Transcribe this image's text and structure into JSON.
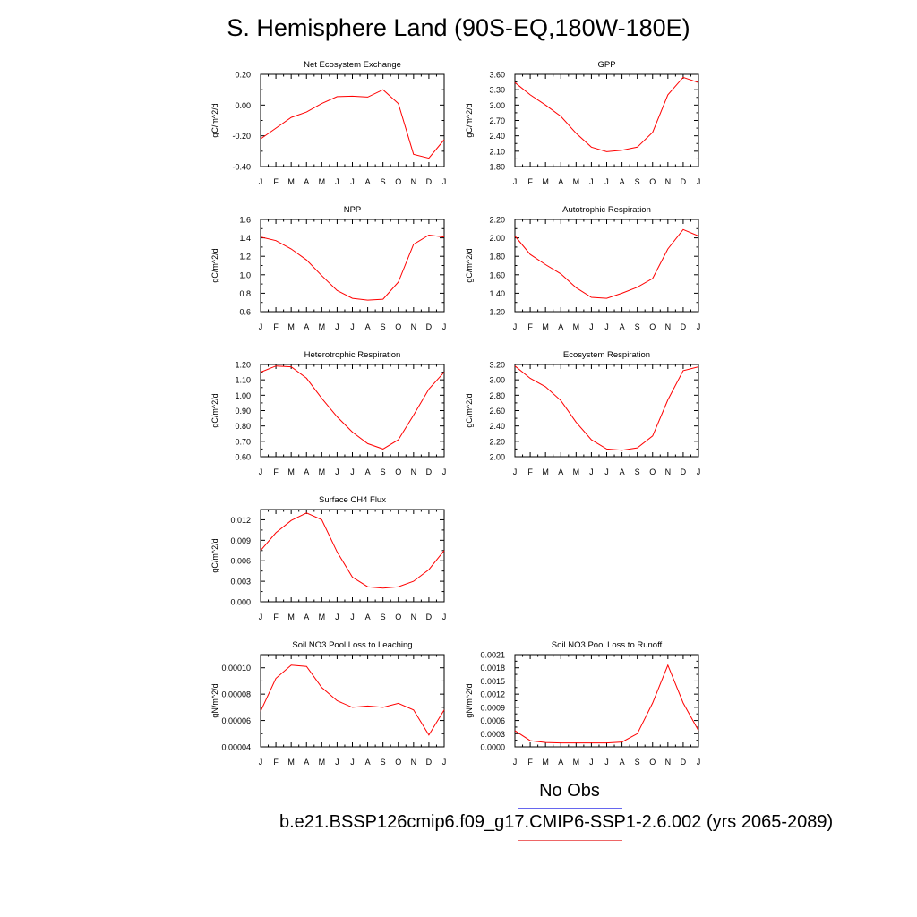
{
  "title": "S. Hemisphere Land (90S-EQ,180W-180E)",
  "legend": {
    "obs_label": "No Obs",
    "model_label": "b.e21.BSSP126cmip6.f09_g17.CMIP6-SSP1-2.6.002 (yrs 2065-2089)",
    "obs_color": "#6666ee",
    "model_color": "#ee6666"
  },
  "series_color": "#ff0000",
  "chart_data": [
    {
      "type": "line",
      "title": "Net Ecosystem Exchange",
      "ylabel": "gC/m^2/d",
      "categories": [
        "J",
        "F",
        "M",
        "A",
        "M",
        "J",
        "J",
        "A",
        "S",
        "O",
        "N",
        "D",
        "J"
      ],
      "ylim": [
        -0.4,
        0.2
      ],
      "yticks": [
        "-0.40",
        "-0.20",
        "0.00",
        "0.20"
      ],
      "values": [
        -0.22,
        -0.15,
        -0.08,
        -0.045,
        0.01,
        0.055,
        0.058,
        0.052,
        0.1,
        0.01,
        -0.32,
        -0.345,
        -0.225
      ]
    },
    {
      "type": "line",
      "title": "GPP",
      "ylabel": "gC/m^2/d",
      "categories": [
        "J",
        "F",
        "M",
        "A",
        "M",
        "J",
        "J",
        "A",
        "S",
        "O",
        "N",
        "D",
        "J"
      ],
      "ylim": [
        1.8,
        3.6
      ],
      "yticks": [
        "1.80",
        "2.10",
        "2.40",
        "2.70",
        "3.00",
        "3.30",
        "3.60"
      ],
      "values": [
        3.44,
        3.2,
        3.0,
        2.78,
        2.45,
        2.18,
        2.09,
        2.12,
        2.18,
        2.47,
        3.2,
        3.54,
        3.44
      ]
    },
    {
      "type": "line",
      "title": "NPP",
      "ylabel": "gC/m^2/d",
      "categories": [
        "J",
        "F",
        "M",
        "A",
        "M",
        "J",
        "J",
        "A",
        "S",
        "O",
        "N",
        "D",
        "J"
      ],
      "ylim": [
        0.6,
        1.6
      ],
      "yticks": [
        "0.6",
        "0.8",
        "1.0",
        "1.2",
        "1.4",
        "1.6"
      ],
      "values": [
        1.41,
        1.37,
        1.28,
        1.16,
        0.99,
        0.83,
        0.745,
        0.725,
        0.735,
        0.92,
        1.33,
        1.43,
        1.41
      ]
    },
    {
      "type": "line",
      "title": "Autotrophic Respiration",
      "ylabel": "gC/m^2/d",
      "categories": [
        "J",
        "F",
        "M",
        "A",
        "M",
        "J",
        "J",
        "A",
        "S",
        "O",
        "N",
        "D",
        "J"
      ],
      "ylim": [
        1.2,
        2.2
      ],
      "yticks": [
        "1.20",
        "1.40",
        "1.60",
        "1.80",
        "2.00",
        "2.20"
      ],
      "values": [
        2.02,
        1.82,
        1.71,
        1.61,
        1.46,
        1.355,
        1.345,
        1.4,
        1.465,
        1.56,
        1.88,
        2.09,
        2.02
      ]
    },
    {
      "type": "line",
      "title": "Heterotrophic Respiration",
      "ylabel": "gC/m^2/d",
      "categories": [
        "J",
        "F",
        "M",
        "A",
        "M",
        "J",
        "J",
        "A",
        "S",
        "O",
        "N",
        "D",
        "J"
      ],
      "ylim": [
        0.6,
        1.2
      ],
      "yticks": [
        "0.60",
        "0.70",
        "0.80",
        "0.90",
        "1.00",
        "1.10",
        "1.20"
      ],
      "values": [
        1.15,
        1.19,
        1.185,
        1.11,
        0.98,
        0.86,
        0.76,
        0.685,
        0.65,
        0.71,
        0.87,
        1.04,
        1.15
      ]
    },
    {
      "type": "line",
      "title": "Ecosystem Respiration",
      "ylabel": "gC/m^2/d",
      "categories": [
        "J",
        "F",
        "M",
        "A",
        "M",
        "J",
        "J",
        "A",
        "S",
        "O",
        "N",
        "D",
        "J"
      ],
      "ylim": [
        2.0,
        3.2
      ],
      "yticks": [
        "2.00",
        "2.20",
        "2.40",
        "2.60",
        "2.80",
        "3.00",
        "3.20"
      ],
      "values": [
        3.18,
        3.02,
        2.91,
        2.73,
        2.45,
        2.22,
        2.1,
        2.085,
        2.115,
        2.27,
        2.74,
        3.12,
        3.17
      ]
    },
    {
      "type": "line",
      "title": "Surface CH4 Flux",
      "ylabel": "gC/m^2/d",
      "categories": [
        "J",
        "F",
        "M",
        "A",
        "M",
        "J",
        "J",
        "A",
        "S",
        "O",
        "N",
        "D",
        "J"
      ],
      "ylim": [
        0.0,
        0.0135
      ],
      "yticks": [
        "0.000",
        "0.003",
        "0.006",
        "0.009",
        "0.012"
      ],
      "ytick_values": [
        0,
        0.003,
        0.006,
        0.009,
        0.012
      ],
      "values": [
        0.0075,
        0.0101,
        0.0119,
        0.013,
        0.012,
        0.0073,
        0.0036,
        0.0022,
        0.002,
        0.0022,
        0.003,
        0.0047,
        0.0075
      ]
    },
    {
      "type": "line",
      "title": "Soil NO3 Pool Loss to Leaching",
      "ylabel": "gN/m^2/d",
      "categories": [
        "J",
        "F",
        "M",
        "A",
        "M",
        "J",
        "J",
        "A",
        "S",
        "O",
        "N",
        "D",
        "J"
      ],
      "ylim": [
        4e-05,
        0.00011
      ],
      "yticks": [
        "0.00004",
        "0.00006",
        "0.00008",
        "0.00010"
      ],
      "ytick_values": [
        4e-05,
        6e-05,
        8e-05,
        0.0001
      ],
      "values": [
        6.7e-05,
        9.2e-05,
        0.000102,
        0.000101,
        8.5e-05,
        7.5e-05,
        7e-05,
        7.1e-05,
        7e-05,
        7.3e-05,
        6.8e-05,
        4.9e-05,
        6.8e-05
      ]
    },
    {
      "type": "line",
      "title": "Soil NO3 Pool Loss to Runoff",
      "ylabel": "gN/m^2/d",
      "categories": [
        "J",
        "F",
        "M",
        "A",
        "M",
        "J",
        "J",
        "A",
        "S",
        "O",
        "N",
        "D",
        "J"
      ],
      "ylim": [
        0.0,
        0.0021
      ],
      "yticks": [
        "0.0000",
        "0.0003",
        "0.0006",
        "0.0009",
        "0.0012",
        "0.0015",
        "0.0018",
        "0.0021"
      ],
      "values": [
        0.00037,
        0.00014,
        0.0001,
        9e-05,
        9e-05,
        9e-05,
        9e-05,
        0.00011,
        0.0003,
        0.001,
        0.00186,
        0.001,
        0.00037
      ]
    }
  ]
}
